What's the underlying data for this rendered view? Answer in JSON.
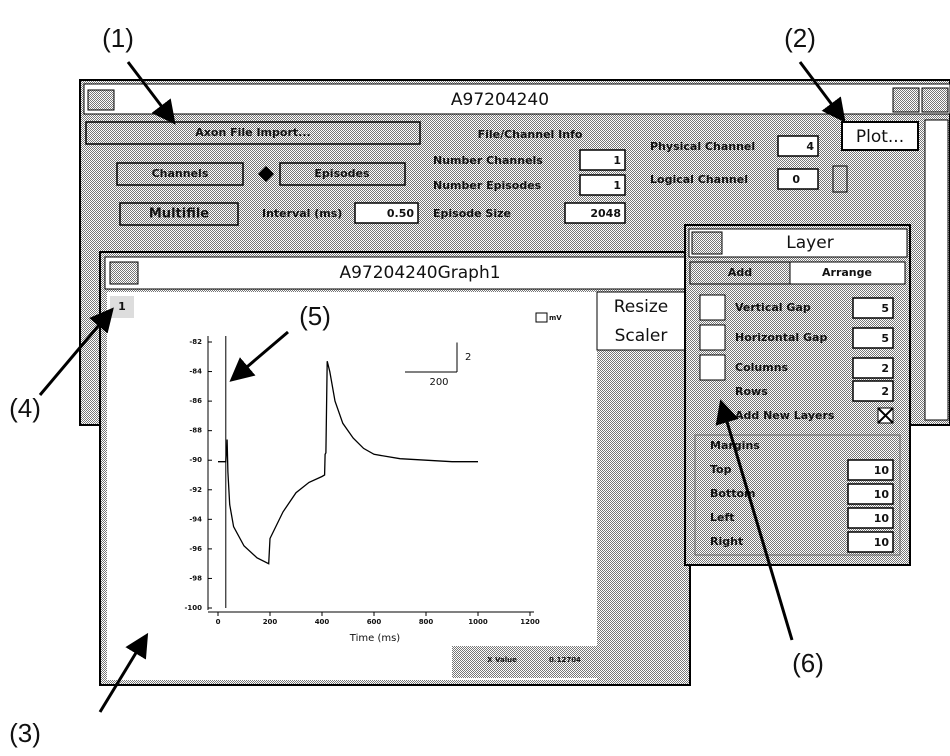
{
  "annotations": {
    "a1": "(1)",
    "a2": "(2)",
    "a3": "(3)",
    "a4": "(4)",
    "a5": "(5)",
    "a6": "(6)"
  },
  "main_window": {
    "title": "A97204240",
    "import_button": "Axon File Import...",
    "info_heading": "File/Channel Info",
    "physical_channel": {
      "label": "Physical Channel",
      "value": "4"
    },
    "plot_button": "Plot...",
    "channels_button": "Channels",
    "episodes_button": "Episodes",
    "number_channels": {
      "label": "Number Channels",
      "value": "1"
    },
    "number_episodes": {
      "label": "Number Episodes",
      "value": "1"
    },
    "logical_channel": {
      "label": "Logical Channel",
      "value": "0"
    },
    "multifile_button": "Multifile",
    "interval": {
      "label": "Interval (ms)",
      "value": "0.50"
    },
    "episode_size": {
      "label": "Episode Size",
      "value": "2048"
    }
  },
  "graph_window": {
    "title": "A97204240Graph1",
    "layer_button": "1",
    "resize_button": "Resize",
    "scaler_button": "Scaler",
    "status_label": "X Value",
    "status_value": "0.12704"
  },
  "graph": {
    "x_label": "Time (ms)",
    "legend": "mV",
    "xlim": [
      0,
      1200
    ],
    "ylim": [
      -100,
      -82
    ],
    "xticks": [
      0,
      200,
      400,
      600,
      800,
      1000,
      1200
    ],
    "yticks": [
      -82,
      -84,
      -86,
      -88,
      -90,
      -92,
      -94,
      -96,
      -98,
      -100
    ],
    "scale_bar": {
      "y": 2,
      "x": 200
    },
    "cursor_x": 30,
    "trace": {
      "x": [
        0,
        30,
        35,
        38,
        45,
        60,
        100,
        150,
        195,
        200,
        250,
        300,
        350,
        400,
        410,
        412,
        415,
        420,
        430,
        450,
        480,
        520,
        560,
        600,
        700,
        800,
        900,
        1000
      ],
      "y": [
        -90.1,
        -90.1,
        -88.6,
        -90.8,
        -93,
        -94.5,
        -95.8,
        -96.6,
        -97.0,
        -95.3,
        -93.5,
        -92.2,
        -91.5,
        -91.1,
        -91.0,
        -89.6,
        -89.5,
        -83.3,
        -84,
        -86,
        -87.5,
        -88.5,
        -89.2,
        -89.6,
        -89.9,
        -90,
        -90.1,
        -90.1
      ]
    }
  },
  "layer_window": {
    "title": "Layer",
    "tab_add": "Add",
    "tab_arrange": "Arrange",
    "vertical_gap": {
      "label": "Vertical Gap",
      "value": "5"
    },
    "horizontal_gap": {
      "label": "Horizontal Gap",
      "value": "5"
    },
    "columns": {
      "label": "Columns",
      "value": "2"
    },
    "rows": {
      "label": "Rows",
      "value": "2"
    },
    "add_new_layers": "Add New Layers",
    "margins": "Margins",
    "top": {
      "label": "Top",
      "value": "10"
    },
    "bottom": {
      "label": "Bottom",
      "value": "10"
    },
    "left": {
      "label": "Left",
      "value": "10"
    },
    "right": {
      "label": "Right",
      "value": "10"
    }
  }
}
